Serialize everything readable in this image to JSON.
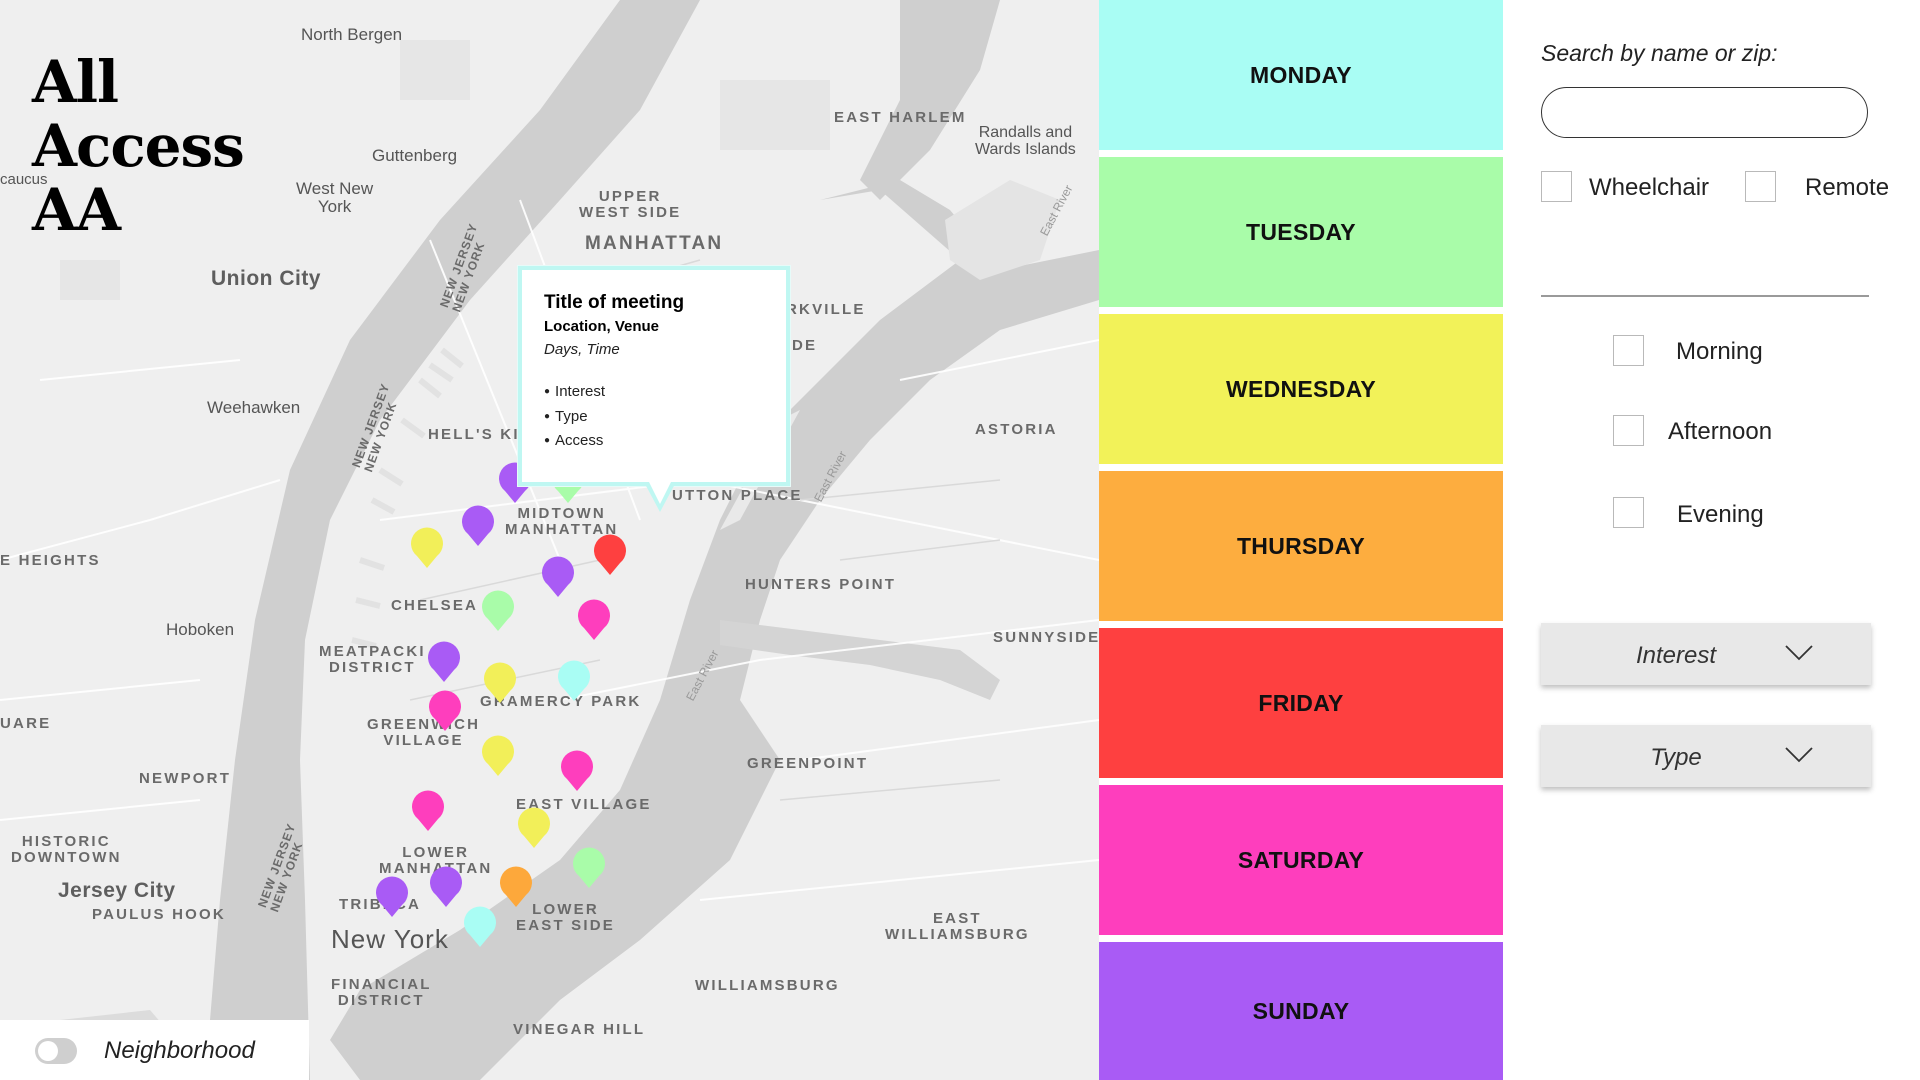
{
  "logo": {
    "line1": "All",
    "line2": "Access",
    "line3": "AA"
  },
  "map": {
    "labels": {
      "north_bergen": "North Bergen",
      "east_harlem": "EAST HARLEM",
      "randalls1": "Randalls and",
      "randalls2": "Wards Islands",
      "guttenberg": "Guttenberg",
      "caucus": "caucus",
      "west_new_york1": "West New",
      "west_new_york2": "York",
      "upper_west_side1": "UPPER",
      "upper_west_side2": "WEST SIDE",
      "manhattan": "MANHATTAN",
      "union_city": "Union City",
      "nj_ny_1a": "NEW JERSEY",
      "nj_ny_1b": "NEW YORK",
      "yorkville": "RKVILLE",
      "yorkville2": "DE",
      "weehawken": "Weehawken",
      "nj_ny_2a": "NEW JERSEY",
      "nj_ny_2b": "NEW YORK",
      "hells_kitchen": "HELL'S KI",
      "astoria": "ASTORIA",
      "midtown1": "MIDTOWN",
      "midtown2": "MANHATTAN",
      "sutton_place": "UTTON PLACE",
      "e_heights": "E HEIGHTS",
      "hunters_point": "HUNTERS POINT",
      "chelsea": "CHELSEA",
      "hoboken": "Hoboken",
      "sunnyside": "SUNNYSIDE",
      "meatpacking1": "MEATPACKI",
      "meatpacking2": "DISTRICT",
      "gramercy": "GRAMERCY PARK",
      "quare": "UARE",
      "greenwich1": "GREENWICH",
      "greenwich2": "VILLAGE",
      "greenpoint": "GREENPOINT",
      "newport": "NEWPORT",
      "east_village": "EAST VILLAGE",
      "historic1": "HISTORIC",
      "historic2": "DOWNTOWN",
      "lower_manhattan1": "LOWER",
      "lower_manhattan2": "MANHATTAN",
      "jersey_city": "Jersey City",
      "paulus_hook": "PAULUS HOOK",
      "nj_ny_3a": "NEW JERSEY",
      "nj_ny_3b": "NEW YORK",
      "tribeca": "TRIBECA",
      "new_york": "New York",
      "les1": "LOWER",
      "les2": "EAST SIDE",
      "east_williamsburg1": "EAST",
      "east_williamsburg2": "WILLIAMSBURG",
      "financial1": "FINANCIAL",
      "financial2": "DISTRICT",
      "williamsburg": "WILLIAMSBURG",
      "vinegar_hill": "VINEGAR HILL",
      "east_river": "East River",
      "east_river2": "East River",
      "east_river3": "East River"
    },
    "tooltip": {
      "title": "Title of meeting",
      "location": "Location, Venue",
      "days_time": "Days, Time",
      "items": [
        "Interest",
        "Type",
        "Access"
      ]
    },
    "pin_colors": {
      "purple": "#a95bf5",
      "yellow": "#f2ef59",
      "red": "#fe4040",
      "green": "#a9fca9",
      "pink": "#fe3ebd",
      "cyan": "#a9fdf4",
      "orange": "#fda83b"
    }
  },
  "neighborhood_toggle": {
    "label": "Neighborhood",
    "on": false
  },
  "days": [
    {
      "label": "MONDAY",
      "color": "#a9fdf4"
    },
    {
      "label": "TUESDAY",
      "color": "#a9fca9"
    },
    {
      "label": "WEDNESDAY",
      "color": "#f2f259"
    },
    {
      "label": "THURSDAY",
      "color": "#fdad3f"
    },
    {
      "label": "FRIDAY",
      "color": "#fe4040"
    },
    {
      "label": "SATURDAY",
      "color": "#fe3ebd"
    },
    {
      "label": "SUNDAY",
      "color": "#a95bf5"
    }
  ],
  "filters": {
    "search_label": "Search by name or zip:",
    "search_value": "",
    "access": {
      "wheelchair": "Wheelchair",
      "remote": "Remote"
    },
    "time": {
      "morning": "Morning",
      "afternoon": "Afternoon",
      "evening": "Evening"
    },
    "interest_label": "Interest",
    "type_label": "Type"
  }
}
